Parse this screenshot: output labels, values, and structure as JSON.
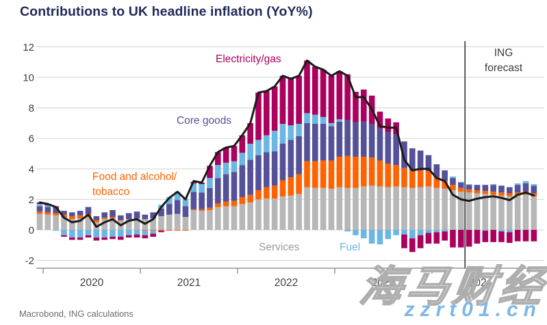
{
  "title": "Contributions to UK headline inflation (YoY%)",
  "annotations": {
    "electricity_gas": "Electricity/gas",
    "core_goods": "Core goods",
    "food": "Food and alcohol/\ntobacco",
    "services": "Services",
    "fuel": "Fuel",
    "forecast": "ING\nforecast"
  },
  "footer": "Macrobond, ING calculations",
  "watermark": {
    "cn": "海马财经",
    "url": "zzrt01.cn"
  },
  "colors": {
    "title": "#222a58",
    "grid": "#d9d9d9",
    "axis": "#7f7f7f",
    "tick_label": "#3d3d3d",
    "services_label": "#9a9a9a",
    "forecast_line": "#333333"
  },
  "chart_data": {
    "type": "bar",
    "subtype": "stacked-monthly-bars-with-headline-line",
    "title": "Contributions to UK headline inflation (YoY%)",
    "xlabel": "",
    "ylabel": "",
    "ylim": [
      -2.6,
      12.4
    ],
    "y_ticks": [
      -2,
      0,
      2,
      4,
      6,
      8,
      10,
      12
    ],
    "x_year_ticks": [
      "2020",
      "2021",
      "2022",
      "2023",
      "2024"
    ],
    "grid": true,
    "legend_position": "inline-annotations",
    "forecast_boundary_index": 53,
    "x": [
      "2020-01",
      "2020-02",
      "2020-03",
      "2020-04",
      "2020-05",
      "2020-06",
      "2020-07",
      "2020-08",
      "2020-09",
      "2020-10",
      "2020-11",
      "2020-12",
      "2021-01",
      "2021-02",
      "2021-03",
      "2021-04",
      "2021-05",
      "2021-06",
      "2021-07",
      "2021-08",
      "2021-09",
      "2021-10",
      "2021-11",
      "2021-12",
      "2022-01",
      "2022-02",
      "2022-03",
      "2022-04",
      "2022-05",
      "2022-06",
      "2022-07",
      "2022-08",
      "2022-09",
      "2022-10",
      "2022-11",
      "2022-12",
      "2023-01",
      "2023-02",
      "2023-03",
      "2023-04",
      "2023-05",
      "2023-06",
      "2023-07",
      "2023-08",
      "2023-09",
      "2023-10",
      "2023-11",
      "2023-12",
      "2024-01",
      "2024-02",
      "2024-03",
      "2024-04",
      "2024-05",
      "2024-06",
      "2024-07",
      "2024-08",
      "2024-09",
      "2024-10",
      "2024-11",
      "2024-12",
      "2025-01",
      "2025-02"
    ],
    "series": [
      {
        "name": "Services",
        "color": "#b7b7b7",
        "values": [
          1.05,
          1.0,
          0.95,
          0.8,
          0.7,
          0.75,
          0.85,
          0.5,
          0.7,
          0.75,
          0.6,
          0.7,
          0.75,
          0.7,
          0.75,
          0.9,
          1.0,
          1.05,
          0.85,
          1.3,
          1.25,
          1.3,
          1.5,
          1.55,
          1.55,
          1.7,
          1.8,
          2.0,
          2.05,
          2.05,
          2.2,
          2.25,
          2.35,
          2.8,
          2.75,
          2.75,
          2.7,
          2.8,
          2.75,
          2.75,
          2.85,
          2.9,
          2.85,
          2.8,
          2.85,
          2.8,
          2.75,
          2.8,
          2.85,
          2.75,
          2.7,
          2.6,
          2.5,
          2.45,
          2.4,
          2.35,
          2.3,
          2.25,
          2.2,
          2.25,
          2.3,
          2.2
        ]
      },
      {
        "name": "Food and alcohol/tobacco",
        "color": "#ff6200",
        "values": [
          0.15,
          0.15,
          0.15,
          0.2,
          0.2,
          0.2,
          0.2,
          0.15,
          0.1,
          0.1,
          0.05,
          0.0,
          0.0,
          -0.05,
          -0.05,
          -0.05,
          -0.05,
          -0.05,
          -0.05,
          0.05,
          0.1,
          0.15,
          0.25,
          0.3,
          0.35,
          0.45,
          0.5,
          0.6,
          0.75,
          0.85,
          1.05,
          1.2,
          1.3,
          1.7,
          1.75,
          1.8,
          1.85,
          2.0,
          2.1,
          2.05,
          1.95,
          1.85,
          1.7,
          1.55,
          1.4,
          1.25,
          1.15,
          1.1,
          1.0,
          0.7,
          0.5,
          0.35,
          0.25,
          0.2,
          0.2,
          0.2,
          0.2,
          0.2,
          0.2,
          0.2,
          0.2,
          0.2
        ]
      },
      {
        "name": "Core goods",
        "color": "#545199",
        "values": [
          0.35,
          0.35,
          0.35,
          0.25,
          0.25,
          0.3,
          0.45,
          0.25,
          0.35,
          0.45,
          0.3,
          0.4,
          0.45,
          0.3,
          0.4,
          0.5,
          0.7,
          0.9,
          0.7,
          1.15,
          1.1,
          1.3,
          1.65,
          1.8,
          1.9,
          2.1,
          2.3,
          2.3,
          2.3,
          2.25,
          2.4,
          2.45,
          2.5,
          2.5,
          2.45,
          2.4,
          2.25,
          2.3,
          2.35,
          2.25,
          2.3,
          2.2,
          2.1,
          2.05,
          2.0,
          1.75,
          1.45,
          1.3,
          1.05,
          0.85,
          0.7,
          0.45,
          0.35,
          0.3,
          0.35,
          0.4,
          0.45,
          0.45,
          0.4,
          0.5,
          0.55,
          0.5
        ]
      },
      {
        "name": "Fuel",
        "color": "#6cb6e4",
        "values": [
          0.15,
          0.1,
          -0.05,
          -0.35,
          -0.5,
          -0.5,
          -0.35,
          -0.5,
          -0.5,
          -0.45,
          -0.45,
          -0.35,
          -0.3,
          -0.3,
          -0.2,
          0.25,
          0.45,
          0.55,
          0.5,
          0.55,
          0.55,
          0.65,
          0.85,
          0.75,
          0.7,
          0.8,
          1.05,
          1.0,
          1.1,
          1.35,
          1.3,
          0.95,
          0.8,
          0.65,
          0.6,
          0.45,
          0.2,
          0.15,
          -0.1,
          -0.35,
          -0.55,
          -0.9,
          -0.95,
          -0.6,
          -0.35,
          -0.3,
          -0.55,
          -0.35,
          -0.2,
          -0.15,
          -0.1,
          0.1,
          0.05,
          0.05,
          0.0,
          -0.05,
          0.05,
          -0.1,
          -0.15,
          0.1,
          0.15,
          0.1
        ]
      },
      {
        "name": "Electricity/gas",
        "color": "#ab005e",
        "values": [
          0.1,
          0.1,
          0.1,
          -0.1,
          -0.15,
          -0.15,
          -0.15,
          -0.2,
          -0.15,
          -0.15,
          -0.2,
          -0.15,
          -0.2,
          -0.2,
          -0.2,
          -0.1,
          0.0,
          0.0,
          0.0,
          0.1,
          0.1,
          0.8,
          0.85,
          1.0,
          1.0,
          1.15,
          1.35,
          3.1,
          2.9,
          2.9,
          3.15,
          3.05,
          3.15,
          3.45,
          3.15,
          3.1,
          3.1,
          3.15,
          3.0,
          2.0,
          2.1,
          1.85,
          1.1,
          0.9,
          0.8,
          -0.9,
          -0.9,
          -0.85,
          -0.7,
          -0.75,
          -0.6,
          -1.15,
          -1.15,
          -1.1,
          -0.9,
          -0.75,
          -0.8,
          -0.7,
          -0.7,
          -0.75,
          -0.75,
          -0.75
        ]
      }
    ],
    "line": {
      "color": "#1a1a1a",
      "values": [
        1.8,
        1.7,
        1.5,
        0.8,
        0.5,
        0.6,
        1.0,
        0.2,
        0.5,
        0.7,
        0.3,
        0.6,
        0.7,
        0.4,
        0.7,
        1.5,
        2.1,
        2.5,
        2.0,
        3.2,
        3.1,
        4.2,
        5.1,
        5.4,
        5.5,
        6.2,
        7.0,
        9.0,
        9.1,
        9.4,
        10.1,
        9.9,
        10.1,
        11.1,
        10.7,
        10.5,
        10.1,
        10.4,
        10.1,
        8.7,
        8.7,
        7.9,
        6.8,
        6.7,
        6.7,
        4.6,
        3.9,
        4.0,
        4.0,
        3.4,
        3.2,
        2.3,
        2.0,
        1.9,
        2.05,
        2.15,
        2.2,
        2.1,
        1.95,
        2.3,
        2.45,
        2.25
      ]
    }
  }
}
